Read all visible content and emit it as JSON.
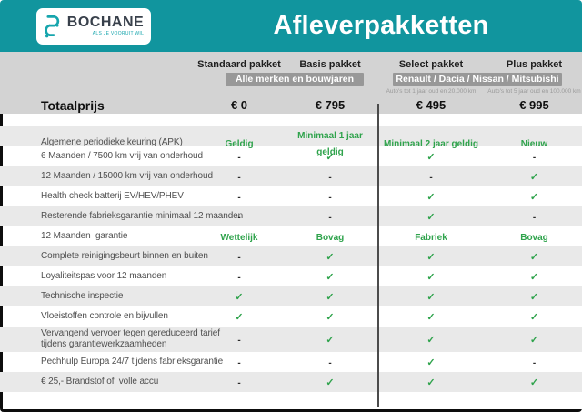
{
  "brand": {
    "name": "BOCHANE",
    "tagline": "ALS JE VOORUIT WIL"
  },
  "title": "Afleverpakketten",
  "colors": {
    "teal": "#11959e",
    "green": "#2fa34c",
    "badge_grey": "#989898",
    "stripe_grey": "#e9e9e9",
    "panel_grey": "#d3d3d3"
  },
  "groups": [
    {
      "label": "Alle merken en bouwjaren"
    },
    {
      "label": "Renault / Dacia / Nissan / Mitsubishi"
    }
  ],
  "columns": [
    {
      "name": "Standaard pakket",
      "price": "€ 0",
      "condition": ""
    },
    {
      "name": "Basis pakket",
      "price": "€ 795",
      "condition": ""
    },
    {
      "name": "Select pakket",
      "price": "€ 495",
      "condition": "Auto's tot 1 jaar oud en 20.000 km"
    },
    {
      "name": "Plus pakket",
      "price": "€ 995",
      "condition": "Auto's tot 5 jaar oud en 100.000 km"
    }
  ],
  "total_label": "Totaalprijs",
  "rows": [
    {
      "label": "Algemene periodieke keuring (APK)",
      "values": [
        "Geldig",
        "Minimaal 1 jaar geldig",
        "Minimaal 2 jaar geldig",
        "Nieuw"
      ]
    },
    {
      "label": "6 Maanden / 7500 km vrij van onderhoud",
      "values": [
        "-",
        "✓",
        "✓",
        "-"
      ]
    },
    {
      "label": "12 Maanden / 15000 km vrij van onderhoud",
      "values": [
        "-",
        "-",
        "-",
        "✓"
      ]
    },
    {
      "label": "Health check batterij EV/HEV/PHEV",
      "values": [
        "-",
        "-",
        "✓",
        "✓"
      ]
    },
    {
      "label": "Resterende fabrieksgarantie minimaal 12 maanden",
      "values": [
        "-",
        "-",
        "✓",
        "-"
      ]
    },
    {
      "label": "12 Maanden  garantie",
      "values": [
        "Wettelijk",
        "Bovag",
        "Fabriek",
        "Bovag"
      ]
    },
    {
      "label": "Complete reinigingsbeurt binnen en buiten",
      "values": [
        "-",
        "✓",
        "✓",
        "✓"
      ]
    },
    {
      "label": "Loyaliteitspas voor 12 maanden",
      "values": [
        "-",
        "✓",
        "✓",
        "✓"
      ]
    },
    {
      "label": "Technische inspectie",
      "values": [
        "✓",
        "✓",
        "✓",
        "✓"
      ]
    },
    {
      "label": "Vloeistoffen controle en bijvullen",
      "values": [
        "✓",
        "✓",
        "✓",
        "✓"
      ]
    },
    {
      "label": "Vervangend vervoer tegen gereduceerd tarief\ntijdens garantiewerkzaamheden",
      "values": [
        "-",
        "✓",
        "✓",
        "✓"
      ]
    },
    {
      "label": "Pechhulp Europa 24/7 tijdens fabrieksgarantie",
      "values": [
        "-",
        "-",
        "✓",
        "-"
      ]
    },
    {
      "label": "€ 25,- Brandstof of  volle accu",
      "values": [
        "-",
        "✓",
        "✓",
        "✓"
      ]
    }
  ]
}
